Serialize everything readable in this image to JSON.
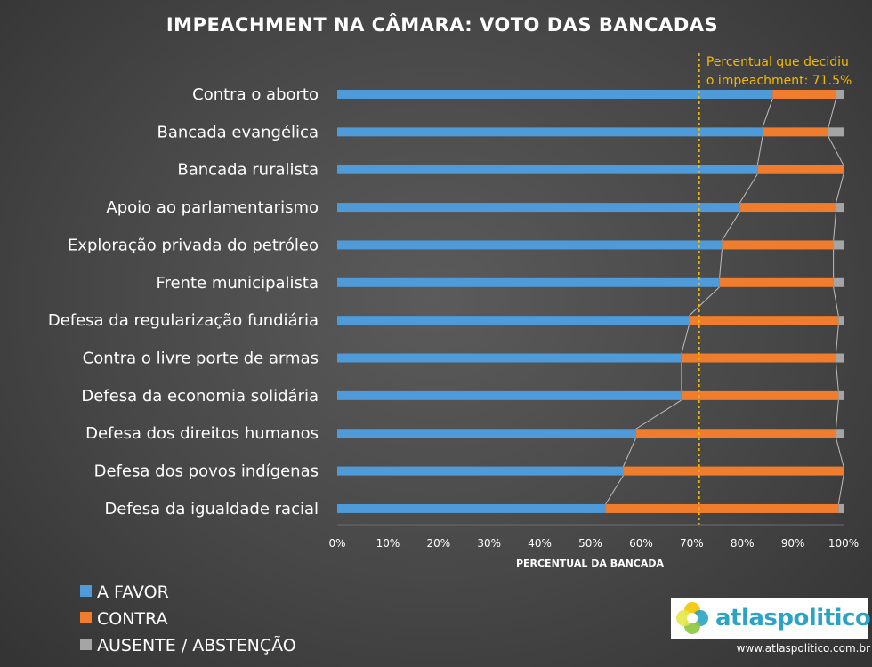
{
  "chart_data": {
    "type": "bar",
    "orientation": "horizontal",
    "stacked": true,
    "title": "IMPEACHMENT NA CÂMARA: VOTO DAS BANCADAS",
    "xlabel": "PERCENTUAL DA BANCADA",
    "xlim": [
      0,
      100
    ],
    "xticks": [
      "0%",
      "10%",
      "20%",
      "30%",
      "40%",
      "50%",
      "60%",
      "70%",
      "80%",
      "90%",
      "100%"
    ],
    "categories": [
      "Contra o aborto",
      "Bancada evangélica",
      "Bancada ruralista",
      "Apoio ao parlamentarismo",
      "Exploração privada do petróleo",
      "Frente municipalista",
      "Defesa da regularização fundiária",
      "Contra o livre porte de armas",
      "Defesa da economia solidária",
      "Defesa dos direitos humanos",
      "Defesa dos povos indígenas",
      "Defesa da igualdade racial"
    ],
    "series": [
      {
        "name": "A FAVOR",
        "color": "#4f9ad8",
        "values": [
          86,
          84,
          83,
          79.5,
          76,
          75.5,
          69.5,
          68,
          68,
          59,
          56.5,
          53
        ]
      },
      {
        "name": "CONTRA",
        "color": "#f07d2d",
        "values": [
          12.5,
          13,
          17,
          19,
          22,
          22.5,
          29.5,
          30.5,
          31,
          39.5,
          43.5,
          46
        ]
      },
      {
        "name": "AUSENTE / ABSTENÇÃO",
        "color": "#a5a5a5",
        "values": [
          1.5,
          3,
          0,
          1.5,
          2,
          2,
          1,
          1.5,
          1,
          1.5,
          0,
          1
        ]
      }
    ],
    "reference_line": {
      "value": 71.5,
      "color": "#f5b800",
      "label_line1": "Percentual que decidiu",
      "label_line2": "o impeachment: 71.5%"
    },
    "grid": false,
    "legend_position": "bottom-left"
  },
  "branding": {
    "logo_text": "atlaspolitico",
    "url": "www.atlaspolitico.com.br"
  }
}
